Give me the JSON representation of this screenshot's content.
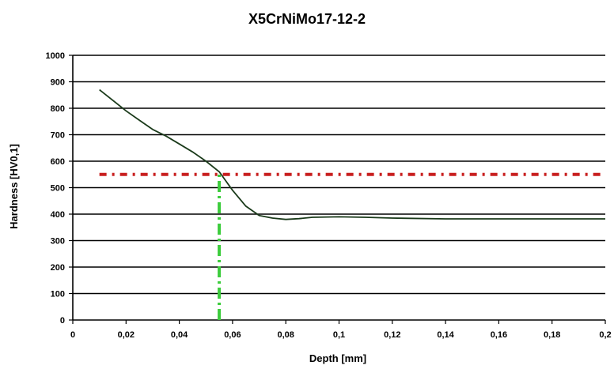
{
  "chart_data": {
    "type": "line",
    "title": "X5CrNiMo17-12-2",
    "xlabel": "Depth [mm]",
    "ylabel": "Hardness [HV0,1]",
    "xlim": [
      0,
      0.2
    ],
    "ylim": [
      0,
      1000
    ],
    "x_ticks": [
      "0",
      "0,02",
      "0,04",
      "0,06",
      "0,08",
      "0,1",
      "0,12",
      "0,14",
      "0,16",
      "0,18",
      "0,2"
    ],
    "y_ticks": [
      "0",
      "100",
      "200",
      "300",
      "400",
      "500",
      "600",
      "700",
      "800",
      "900",
      "1000"
    ],
    "grid": "horizontal",
    "series": [
      {
        "style": "solid",
        "color": "#1a3a1a",
        "x": [
          0.01,
          0.015,
          0.02,
          0.025,
          0.03,
          0.035,
          0.04,
          0.045,
          0.05,
          0.055,
          0.06,
          0.065,
          0.07,
          0.075,
          0.08,
          0.085,
          0.09,
          0.1,
          0.11,
          0.12,
          0.14,
          0.16,
          0.18,
          0.2
        ],
        "y": [
          870,
          830,
          790,
          755,
          720,
          695,
          665,
          635,
          600,
          560,
          490,
          430,
          395,
          385,
          380,
          383,
          388,
          390,
          388,
          385,
          382,
          382,
          382,
          382
        ]
      }
    ],
    "reference_lines": [
      {
        "orientation": "horizontal",
        "value": 550,
        "x_range": [
          0.01,
          0.2
        ],
        "style": "dash-dot",
        "color": "#c81e1e"
      },
      {
        "orientation": "vertical",
        "value": 0.055,
        "y_range": [
          0,
          550
        ],
        "style": "dash-dot",
        "color": "#3ccc3c"
      }
    ]
  }
}
